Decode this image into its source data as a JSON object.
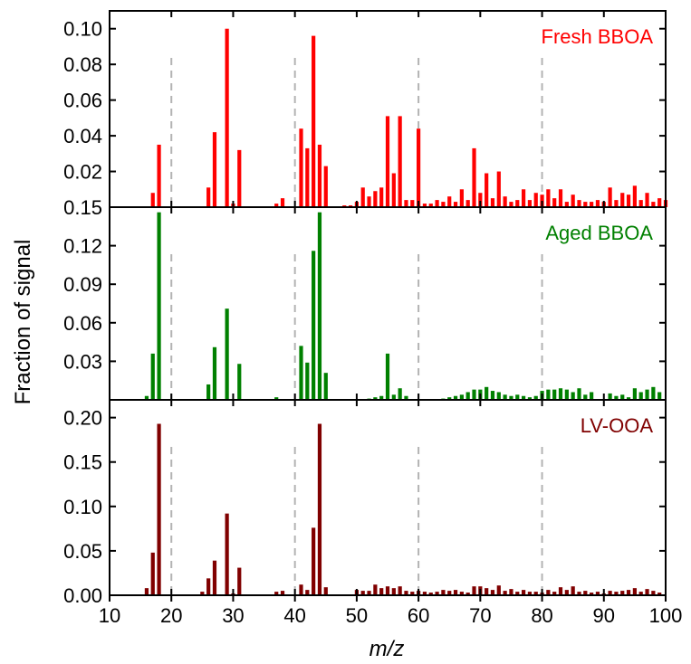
{
  "chart_data": {
    "type": "bar",
    "xlabel": "m/z",
    "ylabel": "Fraction of signal",
    "xlim": [
      10,
      100
    ],
    "xticks": [
      10,
      20,
      30,
      40,
      50,
      60,
      70,
      80,
      90,
      100
    ],
    "vlines": [
      20,
      40,
      60,
      80
    ],
    "panels": [
      {
        "name": "Fresh BBOA",
        "color": "#ff0000",
        "ylim": [
          0,
          0.11
        ],
        "yticks": [
          0.02,
          0.04,
          0.06,
          0.08,
          0.1
        ],
        "ytick_labels": [
          "0.02",
          "0.04",
          "0.06",
          "0.08",
          "0.10"
        ],
        "bottom_tick_label": "0.15",
        "mz": [
          17,
          18,
          26,
          27,
          29,
          30,
          31,
          37,
          38,
          41,
          42,
          43,
          44,
          45,
          48,
          49,
          50,
          51,
          52,
          53,
          54,
          55,
          56,
          57,
          58,
          59,
          60,
          61,
          62,
          63,
          64,
          65,
          66,
          67,
          68,
          69,
          70,
          71,
          72,
          73,
          74,
          75,
          76,
          77,
          78,
          79,
          80,
          81,
          82,
          83,
          84,
          85,
          86,
          87,
          88,
          89,
          90,
          91,
          92,
          93,
          94,
          95,
          96,
          97,
          98,
          99,
          100
        ],
        "values": [
          0.008,
          0.035,
          0.011,
          0.042,
          0.1,
          0.002,
          0.032,
          0.002,
          0.005,
          0.044,
          0.033,
          0.096,
          0.035,
          0.023,
          0.001,
          0.001,
          0.003,
          0.011,
          0.006,
          0.009,
          0.011,
          0.051,
          0.019,
          0.051,
          0.004,
          0.004,
          0.044,
          0.002,
          0.002,
          0.004,
          0.003,
          0.006,
          0.003,
          0.01,
          0.004,
          0.033,
          0.008,
          0.019,
          0.005,
          0.02,
          0.006,
          0.003,
          0.004,
          0.01,
          0.004,
          0.008,
          0.007,
          0.01,
          0.005,
          0.01,
          0.003,
          0.007,
          0.004,
          0.003,
          0.003,
          0.004,
          0.003,
          0.011,
          0.004,
          0.008,
          0.007,
          0.012,
          0.004,
          0.008,
          0.003,
          0.005,
          0.004
        ]
      },
      {
        "name": "Aged BBOA",
        "color": "#008000",
        "ylim": [
          0,
          0.15
        ],
        "yticks": [
          0.03,
          0.06,
          0.09,
          0.12
        ],
        "ytick_labels": [
          "0.03",
          "0.06",
          "0.09",
          "0.12"
        ],
        "mz": [
          16,
          17,
          18,
          26,
          27,
          29,
          31,
          37,
          41,
          42,
          43,
          44,
          45,
          52,
          53,
          54,
          55,
          56,
          57,
          58,
          64,
          65,
          66,
          67,
          68,
          69,
          70,
          71,
          72,
          73,
          74,
          75,
          76,
          77,
          78,
          79,
          80,
          81,
          82,
          83,
          84,
          85,
          86,
          87,
          88,
          91,
          92,
          93,
          94,
          95,
          96,
          97,
          98,
          99
        ],
        "values": [
          0.003,
          0.036,
          0.146,
          0.012,
          0.041,
          0.071,
          0.028,
          0.002,
          0.042,
          0.029,
          0.116,
          0.146,
          0.021,
          0.001,
          0.002,
          0.003,
          0.036,
          0.004,
          0.009,
          0.003,
          0.001,
          0.002,
          0.003,
          0.004,
          0.006,
          0.008,
          0.008,
          0.01,
          0.007,
          0.006,
          0.004,
          0.003,
          0.004,
          0.003,
          0.002,
          0.003,
          0.007,
          0.008,
          0.008,
          0.009,
          0.008,
          0.006,
          0.009,
          0.004,
          0.006,
          0.005,
          0.003,
          0.004,
          0.002,
          0.009,
          0.006,
          0.008,
          0.01,
          0.006
        ]
      },
      {
        "name": "LV-OOA",
        "color": "#800000",
        "ylim": [
          0,
          0.22
        ],
        "yticks": [
          0.0,
          0.05,
          0.1,
          0.15,
          0.2
        ],
        "ytick_labels": [
          "0.00",
          "0.05",
          "0.10",
          "0.15",
          "0.20"
        ],
        "mz": [
          16,
          17,
          18,
          25,
          26,
          27,
          29,
          30,
          31,
          37,
          38,
          41,
          42,
          43,
          44,
          45,
          50,
          51,
          52,
          53,
          54,
          55,
          56,
          57,
          58,
          59,
          60,
          61,
          62,
          63,
          64,
          65,
          66,
          67,
          68,
          69,
          70,
          71,
          72,
          73,
          74,
          75,
          76,
          77,
          78,
          79,
          80,
          81,
          82,
          83,
          84,
          85,
          86,
          87,
          88,
          89,
          90,
          91,
          92,
          93,
          94,
          95,
          96,
          97,
          98,
          99
        ],
        "values": [
          0.008,
          0.048,
          0.193,
          0.004,
          0.019,
          0.039,
          0.092,
          0.002,
          0.031,
          0.004,
          0.005,
          0.012,
          0.006,
          0.076,
          0.193,
          0.009,
          0.006,
          0.005,
          0.005,
          0.012,
          0.008,
          0.01,
          0.008,
          0.01,
          0.005,
          0.004,
          0.005,
          0.004,
          0.003,
          0.004,
          0.006,
          0.005,
          0.006,
          0.004,
          0.003,
          0.01,
          0.01,
          0.008,
          0.006,
          0.011,
          0.005,
          0.007,
          0.004,
          0.006,
          0.004,
          0.004,
          0.003,
          0.006,
          0.004,
          0.009,
          0.006,
          0.01,
          0.004,
          0.005,
          0.003,
          0.004,
          0.002,
          0.005,
          0.004,
          0.005,
          0.006,
          0.008,
          0.004,
          0.007,
          0.005,
          0.003
        ]
      }
    ]
  }
}
